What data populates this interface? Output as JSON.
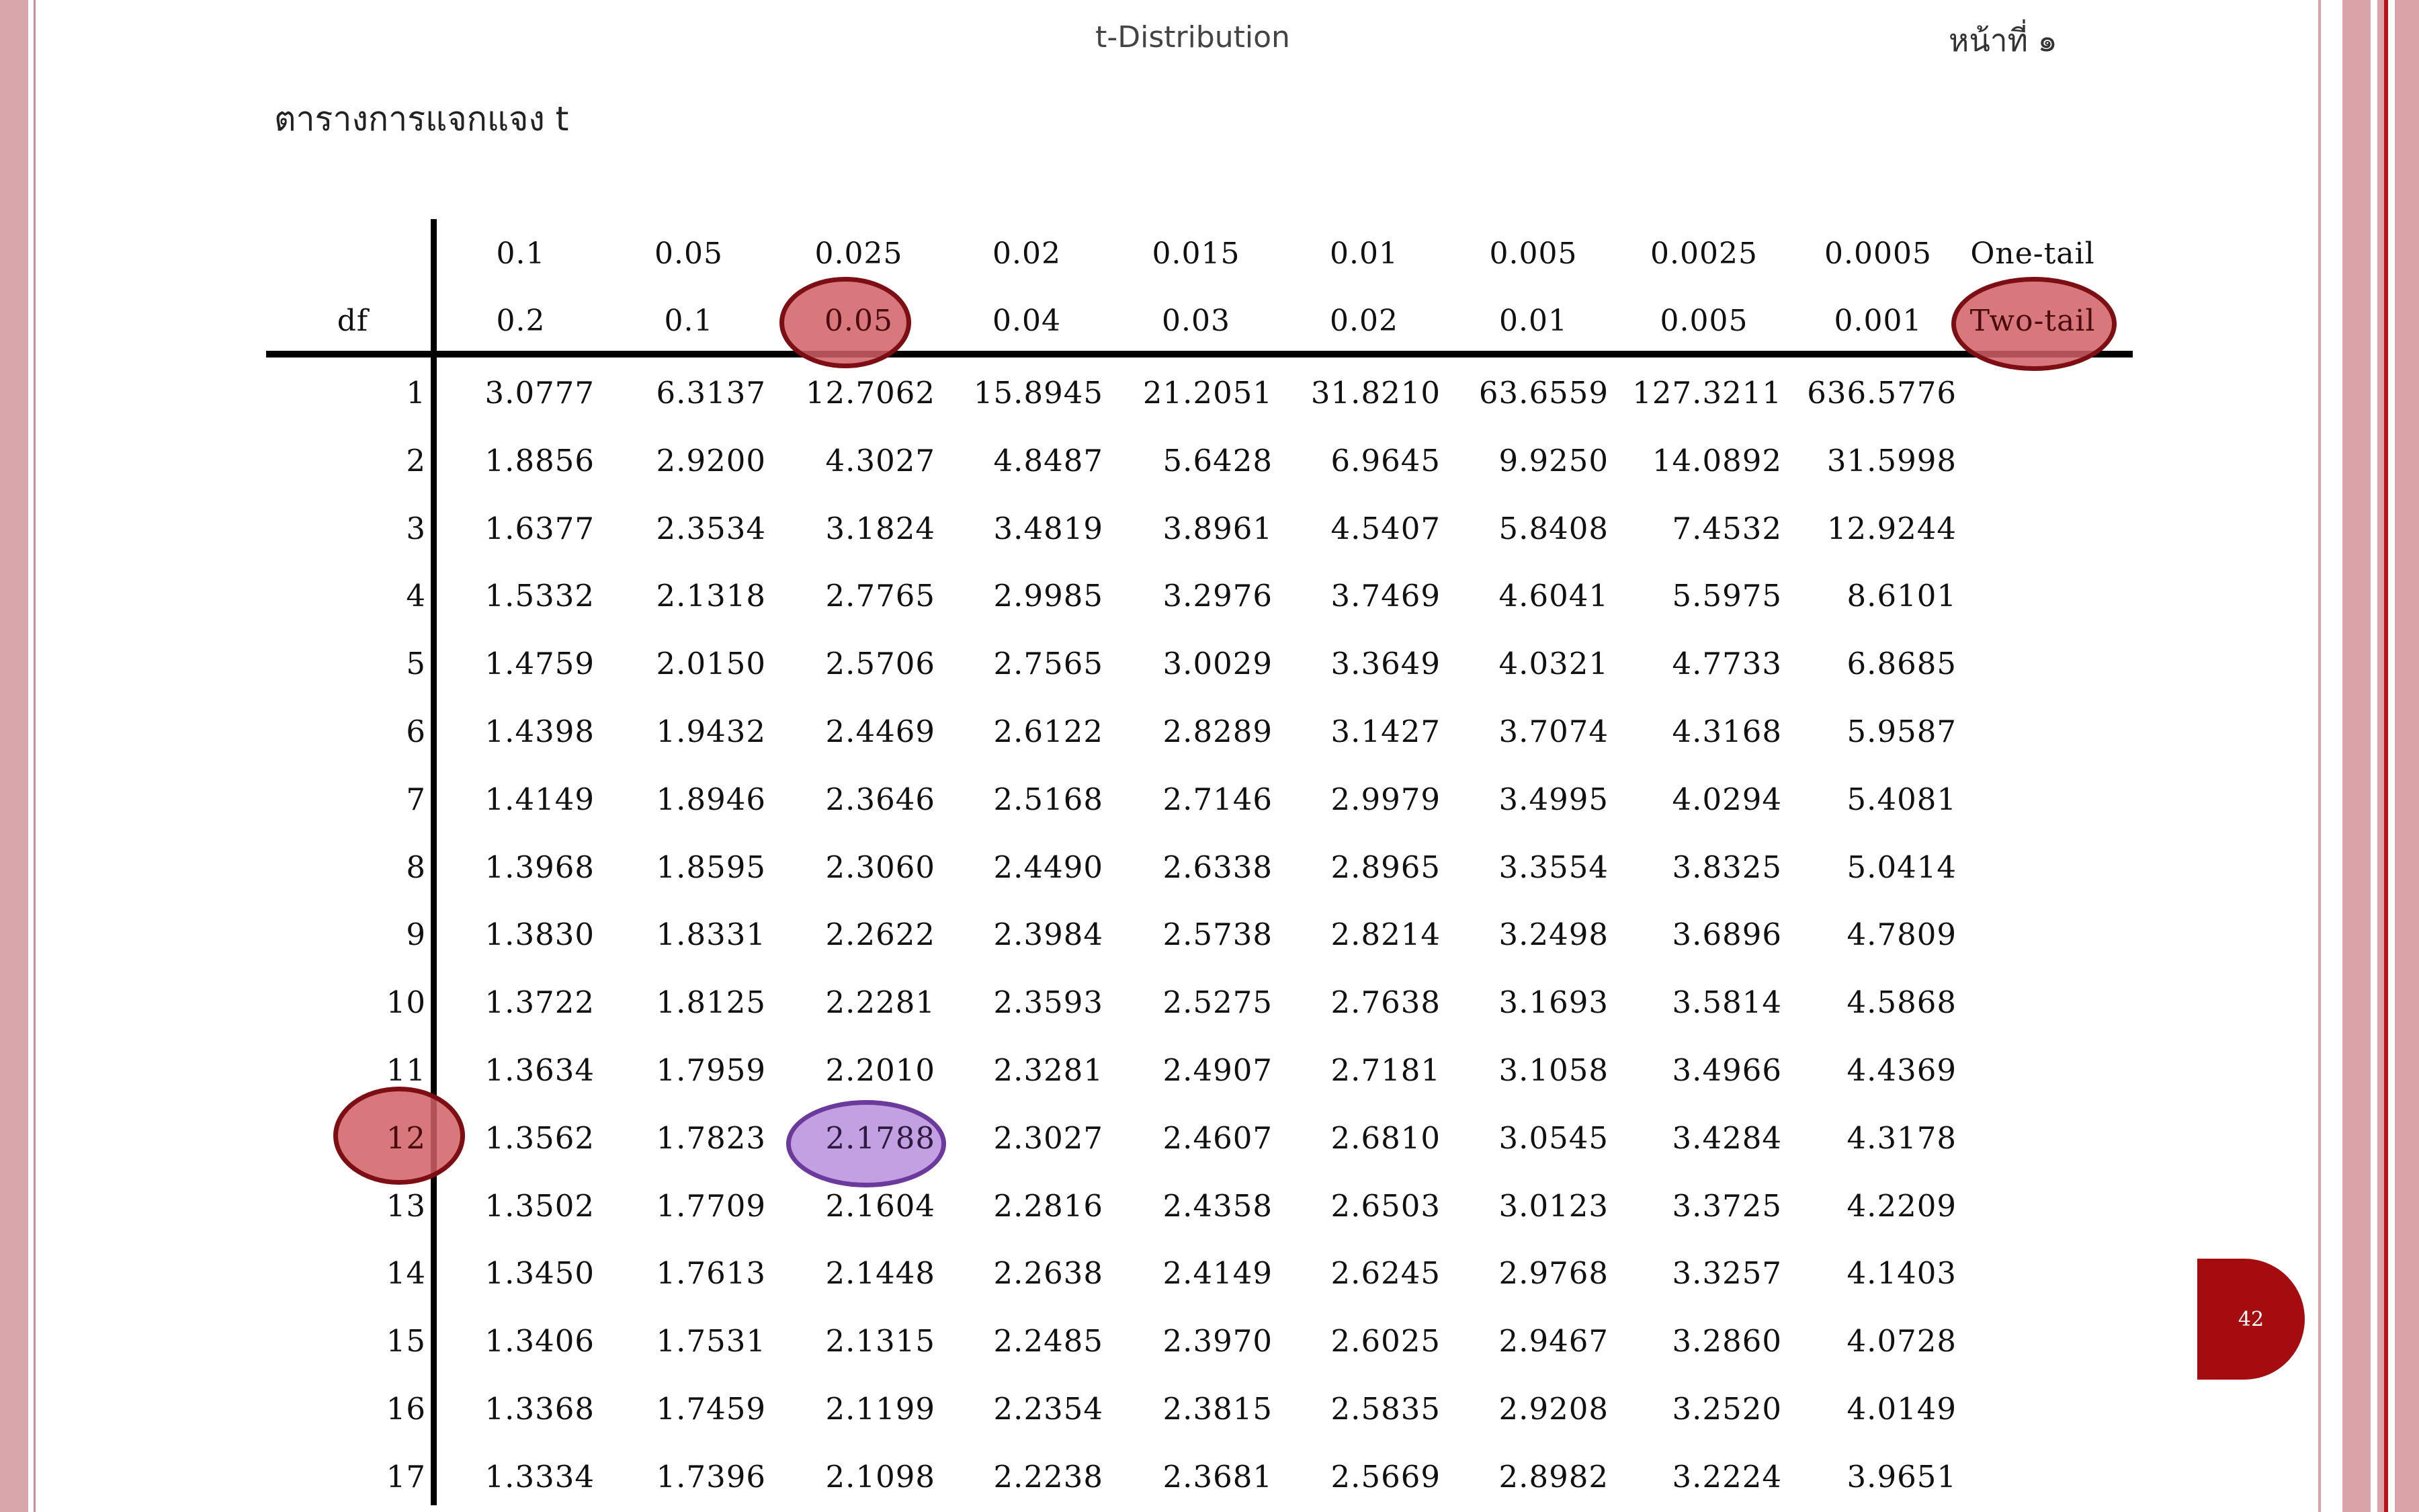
{
  "header": {
    "doc_title": "t-Distribution",
    "page_label": "หน้าที่ ๑",
    "table_title": "ตารางการแจกแจง t"
  },
  "table": {
    "df_label": "df",
    "one_tail_label": "One-tail",
    "two_tail_label": "Two-tail",
    "one_tail": [
      "0.1",
      "0.05",
      "0.025",
      "0.02",
      "0.015",
      "0.01",
      "0.005",
      "0.0025",
      "0.0005"
    ],
    "two_tail": [
      "0.2",
      "0.1",
      "0.05",
      "0.04",
      "0.03",
      "0.02",
      "0.01",
      "0.005",
      "0.001"
    ],
    "rows": [
      {
        "df": "1",
        "values": [
          "3.0777",
          "6.3137",
          "12.7062",
          "15.8945",
          "21.2051",
          "31.8210",
          "63.6559",
          "127.3211",
          "636.5776"
        ]
      },
      {
        "df": "2",
        "values": [
          "1.8856",
          "2.9200",
          "4.3027",
          "4.8487",
          "5.6428",
          "6.9645",
          "9.9250",
          "14.0892",
          "31.5998"
        ]
      },
      {
        "df": "3",
        "values": [
          "1.6377",
          "2.3534",
          "3.1824",
          "3.4819",
          "3.8961",
          "4.5407",
          "5.8408",
          "7.4532",
          "12.9244"
        ]
      },
      {
        "df": "4",
        "values": [
          "1.5332",
          "2.1318",
          "2.7765",
          "2.9985",
          "3.2976",
          "3.7469",
          "4.6041",
          "5.5975",
          "8.6101"
        ]
      },
      {
        "df": "5",
        "values": [
          "1.4759",
          "2.0150",
          "2.5706",
          "2.7565",
          "3.0029",
          "3.3649",
          "4.0321",
          "4.7733",
          "6.8685"
        ]
      },
      {
        "df": "6",
        "values": [
          "1.4398",
          "1.9432",
          "2.4469",
          "2.6122",
          "2.8289",
          "3.1427",
          "3.7074",
          "4.3168",
          "5.9587"
        ]
      },
      {
        "df": "7",
        "values": [
          "1.4149",
          "1.8946",
          "2.3646",
          "2.5168",
          "2.7146",
          "2.9979",
          "3.4995",
          "4.0294",
          "5.4081"
        ]
      },
      {
        "df": "8",
        "values": [
          "1.3968",
          "1.8595",
          "2.3060",
          "2.4490",
          "2.6338",
          "2.8965",
          "3.3554",
          "3.8325",
          "5.0414"
        ]
      },
      {
        "df": "9",
        "values": [
          "1.3830",
          "1.8331",
          "2.2622",
          "2.3984",
          "2.5738",
          "2.8214",
          "3.2498",
          "3.6896",
          "4.7809"
        ]
      },
      {
        "df": "10",
        "values": [
          "1.3722",
          "1.8125",
          "2.2281",
          "2.3593",
          "2.5275",
          "2.7638",
          "3.1693",
          "3.5814",
          "4.5868"
        ]
      },
      {
        "df": "11",
        "values": [
          "1.3634",
          "1.7959",
          "2.2010",
          "2.3281",
          "2.4907",
          "2.7181",
          "3.1058",
          "3.4966",
          "4.4369"
        ]
      },
      {
        "df": "12",
        "values": [
          "1.3562",
          "1.7823",
          "2.1788",
          "2.3027",
          "2.4607",
          "2.6810",
          "3.0545",
          "3.4284",
          "4.3178"
        ]
      },
      {
        "df": "13",
        "values": [
          "1.3502",
          "1.7709",
          "2.1604",
          "2.2816",
          "2.4358",
          "2.6503",
          "3.0123",
          "3.3725",
          "4.2209"
        ]
      },
      {
        "df": "14",
        "values": [
          "1.3450",
          "1.7613",
          "2.1448",
          "2.2638",
          "2.4149",
          "2.6245",
          "2.9768",
          "3.3257",
          "4.1403"
        ]
      },
      {
        "df": "15",
        "values": [
          "1.3406",
          "1.7531",
          "2.1315",
          "2.2485",
          "2.3970",
          "2.6025",
          "2.9467",
          "3.2860",
          "4.0728"
        ]
      },
      {
        "df": "16",
        "values": [
          "1.3368",
          "1.7459",
          "2.1199",
          "2.2354",
          "2.3815",
          "2.5835",
          "2.9208",
          "3.2520",
          "4.0149"
        ]
      },
      {
        "df": "17",
        "values": [
          "1.3334",
          "1.7396",
          "2.1098",
          "2.2238",
          "2.3681",
          "2.5669",
          "2.8982",
          "3.2224",
          "3.9651"
        ]
      }
    ]
  },
  "highlights": {
    "two_tail_alpha_index": 2,
    "df_row_index": 11,
    "colors": {
      "red_fill": "#d16065",
      "red_border": "#7d0f14",
      "purple_fill": "#bc96de",
      "purple_border": "#6b3a9c"
    }
  },
  "footer": {
    "page_number": "42"
  }
}
